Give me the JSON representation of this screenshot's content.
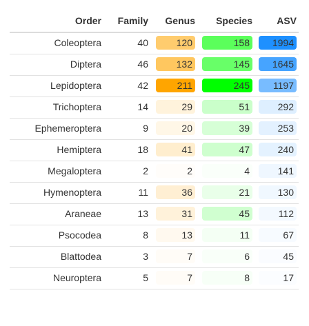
{
  "header": {
    "order": "Order",
    "family": "Family",
    "genus": "Genus",
    "species": "Species",
    "asv": "ASV"
  },
  "rows": [
    {
      "order": "Coleoptera",
      "family": "40",
      "genus": "120",
      "species": "158",
      "asv": "1994"
    },
    {
      "order": "Diptera",
      "family": "46",
      "genus": "132",
      "species": "145",
      "asv": "1645"
    },
    {
      "order": "Lepidoptera",
      "family": "42",
      "genus": "211",
      "species": "245",
      "asv": "1197"
    },
    {
      "order": "Trichoptera",
      "family": "14",
      "genus": "29",
      "species": "51",
      "asv": "292"
    },
    {
      "order": "Ephemeroptera",
      "family": "9",
      "genus": "20",
      "species": "39",
      "asv": "253"
    },
    {
      "order": "Hemiptera",
      "family": "18",
      "genus": "41",
      "species": "47",
      "asv": "240"
    },
    {
      "order": "Megaloptera",
      "family": "2",
      "genus": "2",
      "species": "4",
      "asv": "141"
    },
    {
      "order": "Hymenoptera",
      "family": "11",
      "genus": "36",
      "species": "21",
      "asv": "130"
    },
    {
      "order": "Araneae",
      "family": "13",
      "genus": "31",
      "species": "45",
      "asv": "112"
    },
    {
      "order": "Psocodea",
      "family": "8",
      "genus": "13",
      "species": "11",
      "asv": "67"
    },
    {
      "order": "Blattodea",
      "family": "3",
      "genus": "7",
      "species": "6",
      "asv": "45"
    },
    {
      "order": "Neuroptera",
      "family": "5",
      "genus": "7",
      "species": "8",
      "asv": "17"
    }
  ],
  "colors": {
    "genus_rgb": "255,165,0",
    "species_rgb": "0,255,0",
    "asv_rgb": "30,144,255"
  }
}
